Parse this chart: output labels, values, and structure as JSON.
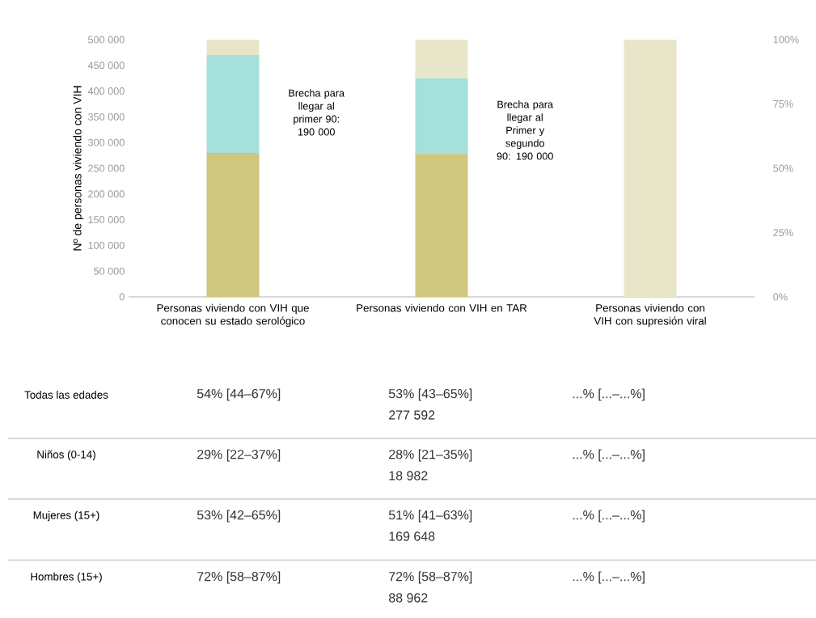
{
  "chart_data": {
    "type": "bar",
    "stacked": true,
    "categories": [
      "Personas viviendo con VIH que conocen su estado serológico",
      "Personas viviendo con VIH en TAR",
      "Personas viviendo con VIH con supresión viral"
    ],
    "series": [
      {
        "color": "#cfc67f",
        "values": [
          280000,
          278000,
          0
        ]
      },
      {
        "color": "#a5e0db",
        "values": [
          190000,
          147000,
          0
        ]
      },
      {
        "color": "#e8e6c8",
        "values": [
          30000,
          75000,
          500000
        ]
      }
    ],
    "ylabel": "Nº de personas viviendo con VIH",
    "ylim": [
      0,
      500000
    ],
    "yticks": [
      {
        "value": 0,
        "label": "0"
      },
      {
        "value": 50000,
        "label": "50 000"
      },
      {
        "value": 100000,
        "label": "100 000"
      },
      {
        "value": 150000,
        "label": "150 000"
      },
      {
        "value": 200000,
        "label": "200 000"
      },
      {
        "value": 250000,
        "label": "250 000"
      },
      {
        "value": 300000,
        "label": "300 000"
      },
      {
        "value": 350000,
        "label": "350 000"
      },
      {
        "value": 400000,
        "label": "400 000"
      },
      {
        "value": 450000,
        "label": "450 000"
      },
      {
        "value": 500000,
        "label": "500 000"
      }
    ],
    "y2lim": [
      0,
      100
    ],
    "y2ticks": [
      {
        "value": 0,
        "label": "0%"
      },
      {
        "value": 25,
        "label": "25%"
      },
      {
        "value": 50,
        "label": "50%"
      },
      {
        "value": 75,
        "label": "75%"
      },
      {
        "value": 100,
        "label": "100%"
      }
    ],
    "annotations": [
      "Brecha para llegar al primer 90: 190 000",
      "Brecha para llegar al Primer y segundo 90: 190 000",
      "Todas las edades",
      "54% [44–67%]",
      "53% [43–65%]",
      "277 592",
      "...% [...–...%]",
      "Niños (0-14)",
      "29% [22–37%]",
      "28% [21–35%]",
      "18 982",
      "...% [...–...%]",
      "Mujeres (15+)",
      "53% [42–65%]",
      "51% [41–63%]",
      "169 648",
      "...% [...–...%]",
      "Hombres (15+)",
      "72% [58–87%]",
      "72% [58–87%]",
      "88 962",
      "...% [...–...%]"
    ]
  }
}
